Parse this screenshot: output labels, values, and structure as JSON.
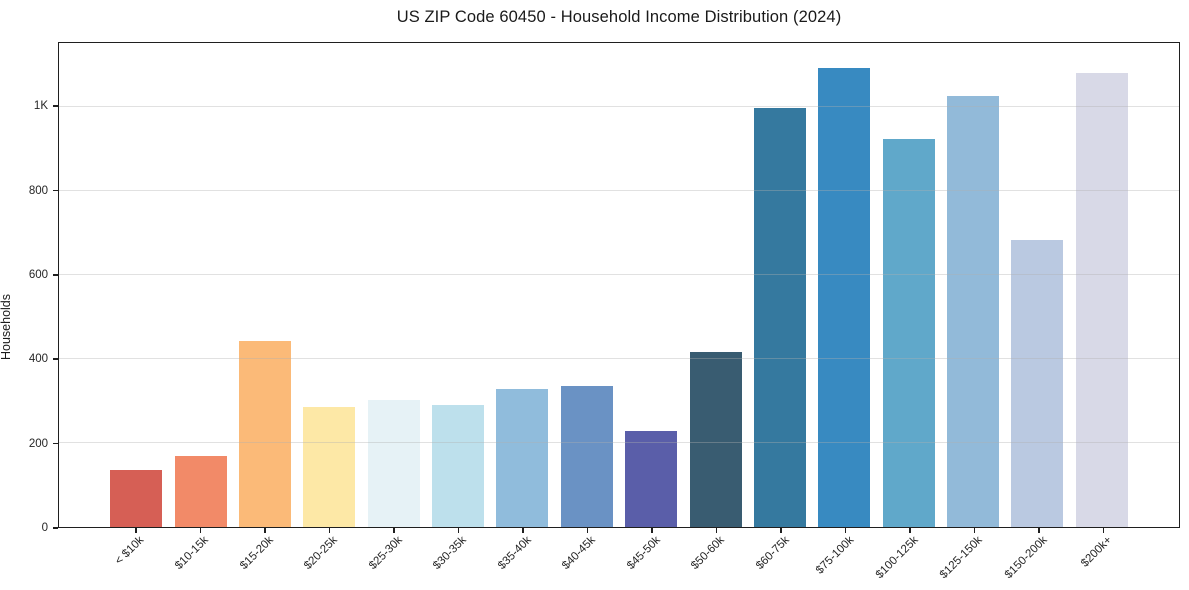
{
  "chart_data": {
    "type": "bar",
    "title": "US ZIP Code 60450 - Household Income Distribution (2024)",
    "xlabel": "",
    "ylabel": "Households",
    "ylim": [
      0,
      1153
    ],
    "grid": "horizontal-only",
    "legend": "none",
    "yticks": [
      {
        "value": 0,
        "label": "0"
      },
      {
        "value": 200,
        "label": "200"
      },
      {
        "value": 400,
        "label": "400"
      },
      {
        "value": 600,
        "label": "600"
      },
      {
        "value": 800,
        "label": "800"
      },
      {
        "value": 1000,
        "label": "1K"
      }
    ],
    "categories": [
      "< $10k",
      "$10-15k",
      "$15-20k",
      "$20-25k",
      "$25-30k",
      "$30-35k",
      "$35-40k",
      "$40-45k",
      "$45-50k",
      "$50-60k",
      "$60-75k",
      "$75-100k",
      "$100-125k",
      "$125-150k",
      "$150-200k",
      "$200k+"
    ],
    "values": [
      135,
      168,
      443,
      286,
      303,
      290,
      329,
      336,
      228,
      417,
      998,
      1094,
      924,
      1026,
      683,
      1081
    ],
    "bar_colors": [
      "#d65f55",
      "#f28a68",
      "#fbba78",
      "#fde8a6",
      "#e6f2f6",
      "#bde0ec",
      "#90bcdc",
      "#6a92c4",
      "#5a5ea9",
      "#395c71",
      "#35799f",
      "#388ac1",
      "#60a8ca",
      "#92bad9",
      "#bac9e1",
      "#d8d9e7"
    ],
    "colors": {
      "spine": "#1f1f1f",
      "grid": "#e4e4e4",
      "tick_label": "#262626",
      "title_text": "#1a1a1a",
      "background": "#ffffff"
    }
  }
}
